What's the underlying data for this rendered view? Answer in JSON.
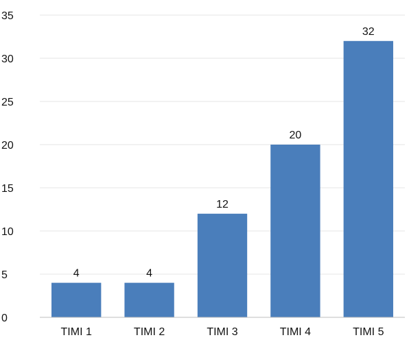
{
  "chart_data": {
    "type": "bar",
    "title": "",
    "xlabel": "",
    "ylabel": "",
    "categories": [
      "TIMI 1",
      "TIMI 2",
      "TIMI 3",
      "TIMI 4",
      "TIMI 5"
    ],
    "values": [
      4,
      4,
      12,
      20,
      32
    ],
    "data_labels": [
      "4",
      "4",
      "12",
      "20",
      "32"
    ],
    "ylim": [
      0,
      35
    ],
    "y_ticks": [
      0,
      5,
      10,
      15,
      20,
      25,
      30,
      35
    ],
    "y_tick_labels": [
      "0",
      "5",
      "10",
      "15",
      "20",
      "25",
      "30",
      "35"
    ],
    "grid": true,
    "legend": "none",
    "bar_color": "#4A7EBB"
  }
}
